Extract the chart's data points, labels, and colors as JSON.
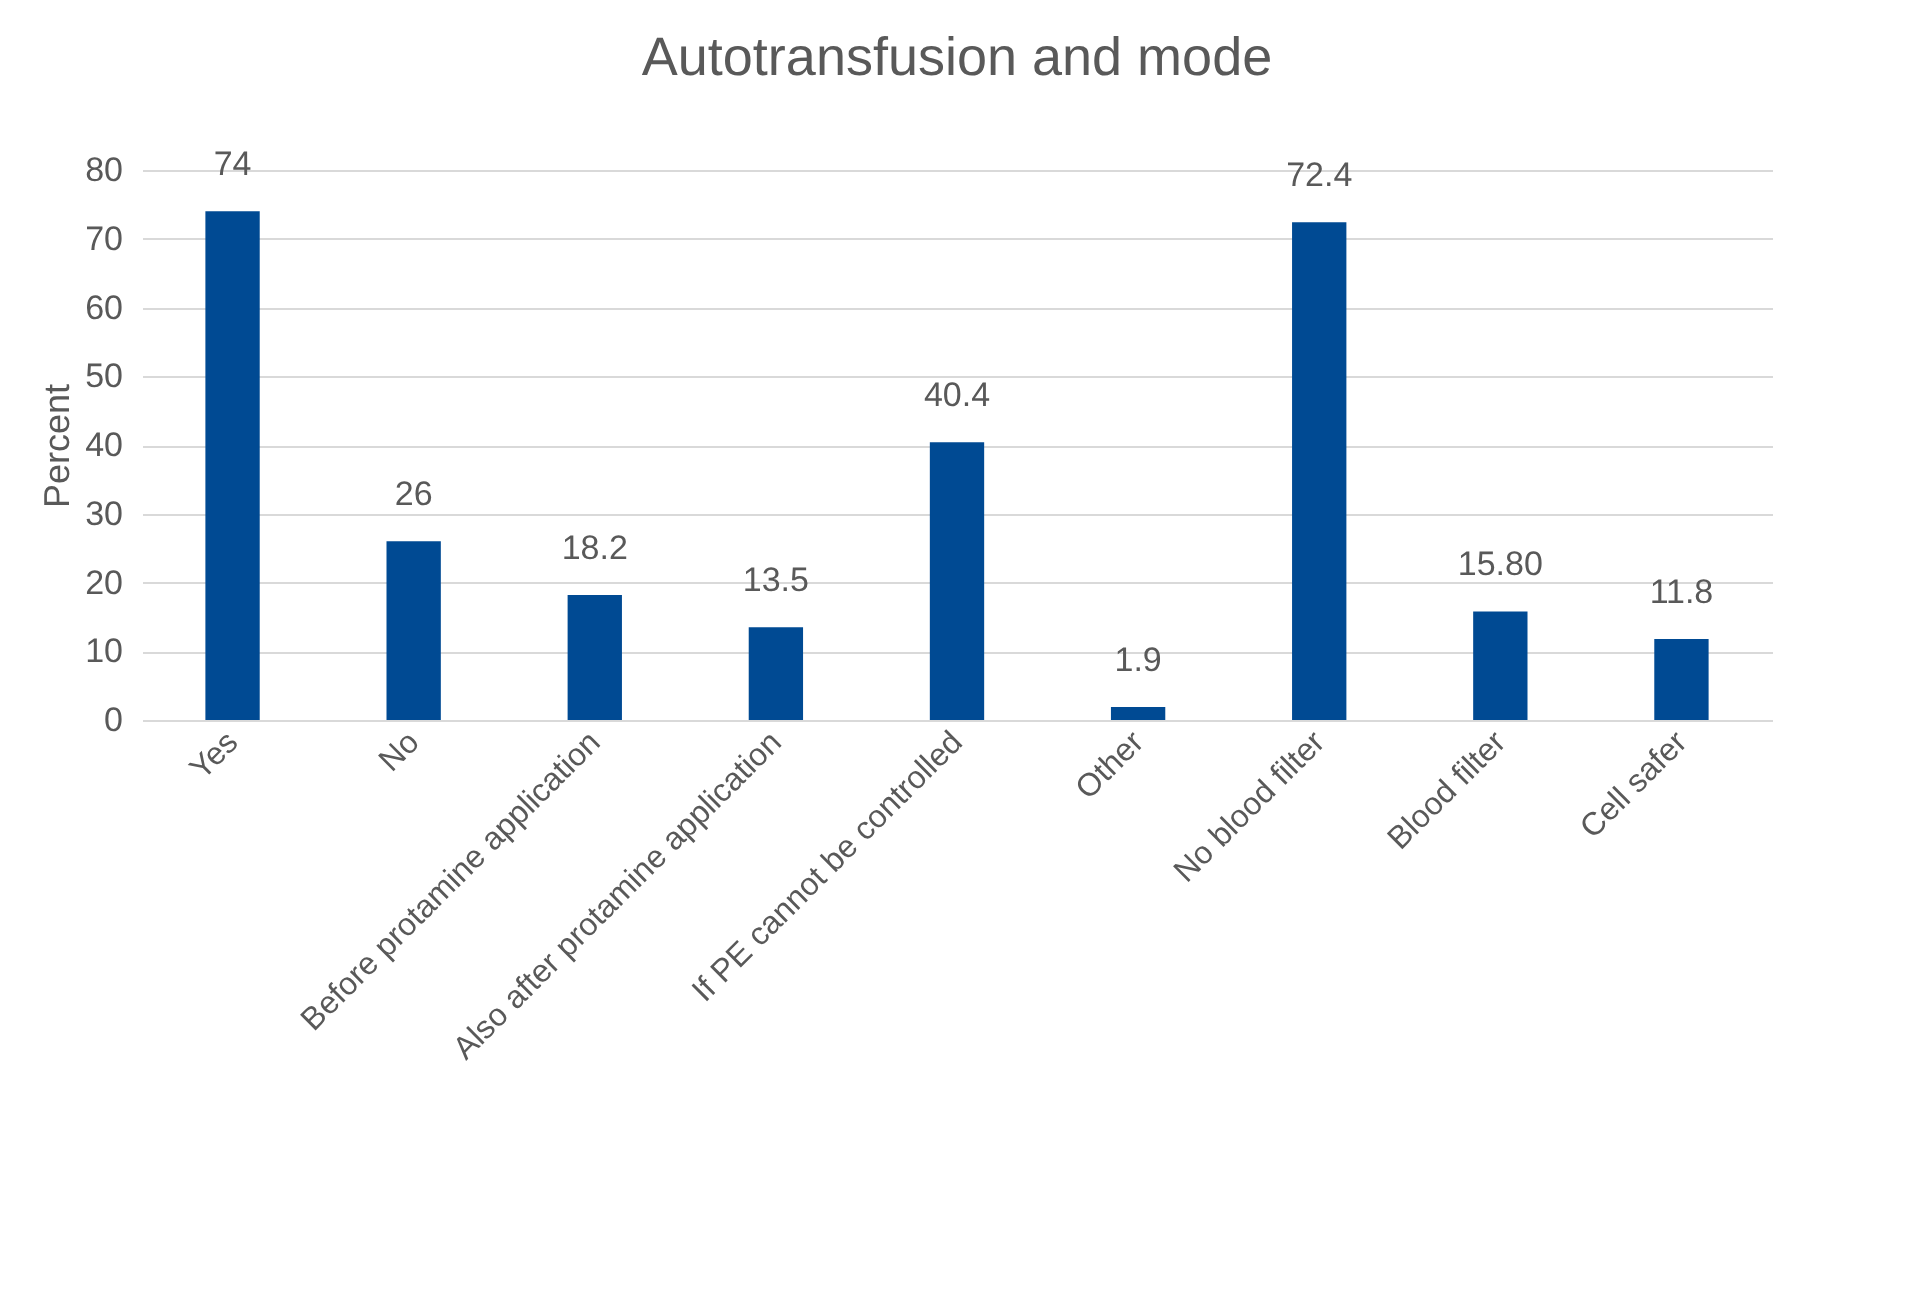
{
  "chart_data": {
    "type": "bar",
    "title": "Autotransfusion and mode",
    "ylabel": "Percent",
    "categories": [
      "Yes",
      "No",
      "Before protamine application",
      "Also after protamine application",
      "If PE cannot be controlled",
      "Other",
      "No blood filter",
      "Blood filter",
      "Cell safer"
    ],
    "values": [
      74,
      26,
      18.2,
      13.5,
      40.4,
      1.9,
      72.4,
      15.8,
      11.8
    ],
    "value_labels": [
      "74",
      "26",
      "18.2",
      "13.5",
      "40.4",
      "1.9",
      "72.4",
      "15.80",
      "11.8"
    ],
    "color": "#004a93",
    "ylim": [
      0,
      80
    ],
    "yticks": [
      0,
      10,
      20,
      30,
      40,
      50,
      60,
      70,
      80
    ],
    "grid": "y"
  }
}
